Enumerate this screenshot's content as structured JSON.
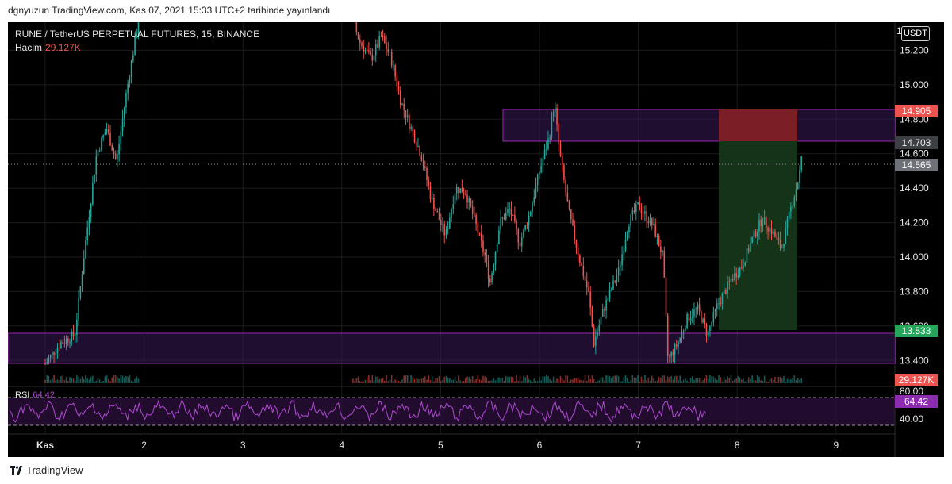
{
  "header": {
    "publish_text": "dgnyuzun TradingView.com, Kas 07, 2021 15:33 UTC+2 tarihinde yayınlandı"
  },
  "legend": {
    "symbol": "RUNE / TetherUS PERPETUAL FUTURES, 15, BINANCE",
    "volume_label": "Hacim",
    "volume_value": "29.127K"
  },
  "currency_button": "USDT",
  "price_axis": {
    "top_partial": "1",
    "ticks": [
      "15.200",
      "15.000",
      "14.800",
      "14.600",
      "14.400",
      "14.200",
      "14.000",
      "13.800",
      "13.600",
      "13.400"
    ],
    "tick_values": [
      15.2,
      15.0,
      14.8,
      14.6,
      14.4,
      14.2,
      14.0,
      13.8,
      13.6,
      13.4
    ]
  },
  "badges": {
    "stop": "14.905",
    "entry": "14.703",
    "last": "14.565",
    "target": "13.533",
    "volume": "29.127K",
    "rsi": "64.42"
  },
  "rsi": {
    "label": "RSI",
    "value": "64.42",
    "upper": "80.00",
    "lower": "40.00"
  },
  "time_axis": [
    "Kas",
    "2",
    "3",
    "4",
    "5",
    "6",
    "7",
    "8",
    "9"
  ],
  "zones": {
    "upper_zone": [
      14.703,
      14.905
    ],
    "lower_zone": [
      13.3,
      13.5
    ],
    "short_position": {
      "entry": 14.703,
      "stop": 14.905,
      "target": 13.533
    }
  },
  "colors": {
    "background": "#000000",
    "up_candle": "#26a69a",
    "down_candle": "#ef5350",
    "zone_border": "#9c27b0",
    "rsi_line": "#b04ad3",
    "stop_fill": "#7b1e26",
    "target_fill": "#143318"
  },
  "footer": {
    "brand": "TradingView"
  },
  "chart_data": {
    "type": "candlestick",
    "title": "RUNE / TetherUS PERPETUAL FUTURES, 15, BINANCE",
    "ylim": [
      13.3,
      15.4
    ],
    "x_labels": [
      "Kas",
      "2",
      "3",
      "4",
      "5",
      "6",
      "7",
      "8",
      "9"
    ],
    "price_path": [
      {
        "x": 0.0,
        "y": 13.38
      },
      {
        "x": 0.15,
        "y": 13.5
      },
      {
        "x": 0.3,
        "y": 13.55
      },
      {
        "x": 0.4,
        "y": 14.05
      },
      {
        "x": 0.52,
        "y": 14.6
      },
      {
        "x": 0.62,
        "y": 14.75
      },
      {
        "x": 0.72,
        "y": 14.55
      },
      {
        "x": 0.82,
        "y": 14.95
      },
      {
        "x": 0.95,
        "y": 15.4
      },
      {
        "x": 1.8,
        "y": 15.4
      },
      {
        "x": 3.1,
        "y": 15.4
      },
      {
        "x": 3.18,
        "y": 15.25
      },
      {
        "x": 3.3,
        "y": 15.15
      },
      {
        "x": 3.4,
        "y": 15.28
      },
      {
        "x": 3.5,
        "y": 15.15
      },
      {
        "x": 3.6,
        "y": 14.9
      },
      {
        "x": 3.7,
        "y": 14.75
      },
      {
        "x": 3.8,
        "y": 14.6
      },
      {
        "x": 3.9,
        "y": 14.35
      },
      {
        "x": 4.05,
        "y": 14.12
      },
      {
        "x": 4.15,
        "y": 14.4
      },
      {
        "x": 4.25,
        "y": 14.38
      },
      {
        "x": 4.35,
        "y": 14.2
      },
      {
        "x": 4.45,
        "y": 14.0
      },
      {
        "x": 4.5,
        "y": 13.85
      },
      {
        "x": 4.6,
        "y": 14.2
      },
      {
        "x": 4.7,
        "y": 14.28
      },
      {
        "x": 4.8,
        "y": 14.08
      },
      {
        "x": 4.9,
        "y": 14.25
      },
      {
        "x": 5.0,
        "y": 14.5
      },
      {
        "x": 5.1,
        "y": 14.7
      },
      {
        "x": 5.15,
        "y": 14.9
      },
      {
        "x": 5.2,
        "y": 14.62
      },
      {
        "x": 5.3,
        "y": 14.25
      },
      {
        "x": 5.4,
        "y": 14.0
      },
      {
        "x": 5.5,
        "y": 13.78
      },
      {
        "x": 5.55,
        "y": 13.5
      },
      {
        "x": 5.65,
        "y": 13.7
      },
      {
        "x": 5.8,
        "y": 13.92
      },
      {
        "x": 5.9,
        "y": 14.2
      },
      {
        "x": 6.0,
        "y": 14.3
      },
      {
        "x": 6.15,
        "y": 14.18
      },
      {
        "x": 6.25,
        "y": 14.0
      },
      {
        "x": 6.3,
        "y": 13.4
      },
      {
        "x": 6.4,
        "y": 13.5
      },
      {
        "x": 6.5,
        "y": 13.65
      },
      {
        "x": 6.6,
        "y": 13.7
      },
      {
        "x": 6.7,
        "y": 13.55
      },
      {
        "x": 6.8,
        "y": 13.72
      },
      {
        "x": 6.95,
        "y": 13.88
      },
      {
        "x": 7.05,
        "y": 13.95
      },
      {
        "x": 7.15,
        "y": 14.1
      },
      {
        "x": 7.25,
        "y": 14.22
      },
      {
        "x": 7.35,
        "y": 14.15
      },
      {
        "x": 7.45,
        "y": 14.05
      },
      {
        "x": 7.55,
        "y": 14.3
      },
      {
        "x": 7.62,
        "y": 14.45
      },
      {
        "x": 7.65,
        "y": 14.565
      }
    ]
  }
}
